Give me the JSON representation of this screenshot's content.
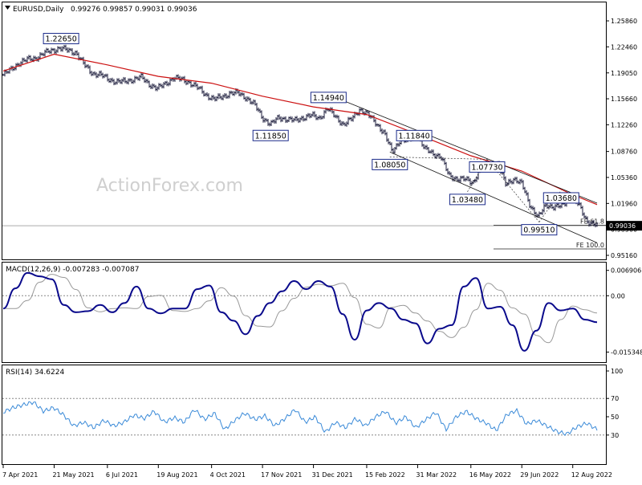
{
  "header": {
    "symbol": "EURUSD,Daily",
    "ohlc": "0.99276 0.99857 0.99031 0.99036"
  },
  "watermark": "ActionForex.com",
  "colors": {
    "price_bars": "#1a1a3a",
    "moving_average": "#cc1111",
    "macd_line": "#0a0a8c",
    "signal_line": "#999999",
    "rsi_line": "#3a8ad8",
    "channel_lines": "#111111",
    "price_marker_bg": "#000000",
    "grid_dotted": "#888888"
  },
  "chart_data": [
    {
      "panel": "price",
      "type": "ohlc",
      "title": "EURUSD,Daily",
      "ylim": [
        0.95,
        1.27
      ],
      "y_ticks": [
        "1.25860",
        "1.22460",
        "1.19050",
        "1.15660",
        "1.12260",
        "1.08760",
        "1.05360",
        "1.01960",
        "0.98560",
        "0.95160"
      ],
      "current_price": "0.99036",
      "x_ticks": [
        "7 Apr 2021",
        "21 May 2021",
        "6 Jul 2021",
        "19 Aug 2021",
        "4 Oct 2021",
        "17 Nov 2021",
        "31 Dec 2021",
        "15 Feb 2022",
        "31 Mar 2022",
        "16 May 2022",
        "29 Jun 2022",
        "12 Aug 2022"
      ],
      "close_path": [
        [
          "7 Apr 2021",
          1.188
        ],
        [
          "14 Apr 2021",
          1.195
        ],
        [
          "21 Apr 2021",
          1.204
        ],
        [
          "28 Apr 2021",
          1.208
        ],
        [
          "5 May 2021",
          1.21
        ],
        [
          "12 May 2021",
          1.216
        ],
        [
          "19 May 2021",
          1.22
        ],
        [
          "26 May 2021",
          1.223
        ],
        [
          "2 Jun 2021",
          1.22
        ],
        [
          "9 Jun 2021",
          1.217
        ],
        [
          "16 Jun 2021",
          1.201
        ],
        [
          "23 Jun 2021",
          1.19
        ],
        [
          "30 Jun 2021",
          1.188
        ],
        [
          "7 Jul 2021",
          1.182
        ],
        [
          "14 Jul 2021",
          1.179
        ],
        [
          "21 Jul 2021",
          1.179
        ],
        [
          "28 Jul 2021",
          1.182
        ],
        [
          "4 Aug 2021",
          1.185
        ],
        [
          "11 Aug 2021",
          1.176
        ],
        [
          "18 Aug 2021",
          1.17
        ],
        [
          "25 Aug 2021",
          1.176
        ],
        [
          "1 Sep 2021",
          1.184
        ],
        [
          "8 Sep 2021",
          1.182
        ],
        [
          "15 Sep 2021",
          1.178
        ],
        [
          "22 Sep 2021",
          1.171
        ],
        [
          "29 Sep 2021",
          1.162
        ],
        [
          "6 Oct 2021",
          1.156
        ],
        [
          "13 Oct 2021",
          1.159
        ],
        [
          "20 Oct 2021",
          1.164
        ],
        [
          "27 Oct 2021",
          1.164
        ],
        [
          "3 Nov 2021",
          1.158
        ],
        [
          "10 Nov 2021",
          1.149
        ],
        [
          "17 Nov 2021",
          1.132
        ],
        [
          "24 Nov 2021",
          1.123
        ],
        [
          "1 Dec 2021",
          1.132
        ],
        [
          "8 Dec 2021",
          1.13
        ],
        [
          "15 Dec 2021",
          1.128
        ],
        [
          "22 Dec 2021",
          1.132
        ],
        [
          "29 Dec 2021",
          1.135
        ],
        [
          "5 Jan 2022",
          1.131
        ],
        [
          "12 Jan 2022",
          1.144
        ],
        [
          "19 Jan 2022",
          1.133
        ],
        [
          "26 Jan 2022",
          1.123
        ],
        [
          "2 Feb 2022",
          1.13
        ],
        [
          "9 Feb 2022",
          1.143
        ],
        [
          "16 Feb 2022",
          1.136
        ],
        [
          "23 Feb 2022",
          1.125
        ],
        [
          "2 Mar 2022",
          1.112
        ],
        [
          "9 Mar 2022",
          1.087
        ],
        [
          "16 Mar 2022",
          1.103
        ],
        [
          "23 Mar 2022",
          1.101
        ],
        [
          "30 Mar 2022",
          1.112
        ],
        [
          "6 Apr 2022",
          1.091
        ],
        [
          "13 Apr 2022",
          1.085
        ],
        [
          "20 Apr 2022",
          1.081
        ],
        [
          "27 Apr 2022",
          1.056
        ],
        [
          "4 May 2022",
          1.052
        ],
        [
          "11 May 2022",
          1.051
        ],
        [
          "18 May 2022",
          1.047
        ],
        [
          "25 May 2022",
          1.068
        ],
        [
          "1 Jun 2022",
          1.072
        ],
        [
          "8 Jun 2022",
          1.071
        ],
        [
          "15 Jun 2022",
          1.045
        ],
        [
          "22 Jun 2022",
          1.052
        ],
        [
          "29 Jun 2022",
          1.045
        ],
        [
          "6 Jul 2022",
          1.018
        ],
        [
          "13 Jul 2022",
          1.001
        ],
        [
          "20 Jul 2022",
          1.018
        ],
        [
          "27 Jul 2022",
          1.015
        ],
        [
          "3 Aug 2022",
          1.016
        ],
        [
          "10 Aug 2022",
          1.029
        ],
        [
          "17 Aug 2022",
          1.018
        ],
        [
          "24 Aug 2022",
          0.997
        ],
        [
          "31 Aug 2022",
          0.992
        ],
        [
          "2 Sep 2022",
          0.9904
        ]
      ],
      "ma_path": [
        [
          "7 Apr 2021",
          1.193
        ],
        [
          "21 May 2021",
          1.215
        ],
        [
          "6 Jul 2021",
          1.201
        ],
        [
          "19 Aug 2021",
          1.186
        ],
        [
          "4 Oct 2021",
          1.177
        ],
        [
          "17 Nov 2021",
          1.16
        ],
        [
          "31 Dec 2021",
          1.146
        ],
        [
          "15 Feb 2022",
          1.136
        ],
        [
          "31 Mar 2022",
          1.11
        ],
        [
          "16 May 2022",
          1.082
        ],
        [
          "29 Jun 2022",
          1.062
        ],
        [
          "12 Aug 2022",
          1.031
        ],
        [
          "2 Sep 2022",
          1.018
        ]
      ],
      "annotations": [
        {
          "label": "1.22650",
          "date": "27 May 2021",
          "value": 1.2265
        },
        {
          "label": "1.14940",
          "date": "13 Jan 2022",
          "value": 1.1494
        },
        {
          "label": "1.11850",
          "date": "24 Nov 2021",
          "value": 1.1185
        },
        {
          "label": "1.11840",
          "date": "28 Mar 2022",
          "value": 1.1184
        },
        {
          "label": "1.08050",
          "date": "7 Mar 2022",
          "value": 1.0805
        },
        {
          "label": "1.07730",
          "date": "30 May 2022",
          "value": 1.0773
        },
        {
          "label": "1.03480",
          "date": "13 May 2022",
          "value": 1.0348
        },
        {
          "label": "1.03680",
          "date": "2 Aug 2022",
          "value": 1.0368
        },
        {
          "label": "0.99510",
          "date": "14 Jul 2022",
          "value": 0.9951
        }
      ],
      "fib_labels": [
        {
          "label": "FE 61.8",
          "value": 0.991
        },
        {
          "label": "FE 100.0",
          "value": 0.96
        }
      ],
      "channel": {
        "upper": [
          [
            "13 Jan 2022",
            1.162
          ],
          [
            "2 Sep 2022",
            1.02
          ]
        ],
        "lower": [
          [
            "7 Mar 2022",
            1.087
          ],
          [
            "2 Sep 2022",
            0.968
          ]
        ]
      }
    },
    {
      "panel": "macd",
      "type": "line",
      "title": "MACD(12,26,9) -0.007283 -0.007087",
      "ylim": [
        -0.017,
        0.0075
      ],
      "y_ticks": [
        "0.006906",
        "0.00",
        "-0.015348"
      ],
      "series": [
        {
          "name": "MACD",
          "values": [
            -0.0035,
            0.002,
            0.0062,
            0.0053,
            0.0045,
            -0.0025,
            -0.0045,
            -0.0042,
            -0.0025,
            -0.0045,
            -0.002,
            0.0025,
            -0.0035,
            -0.0048,
            -0.0035,
            -0.0035,
            0.0018,
            0.0028,
            -0.0045,
            -0.0068,
            -0.0105,
            -0.0055,
            -0.002,
            0.0012,
            0.004,
            0.0018,
            0.004,
            0.0025,
            -0.005,
            -0.012,
            -0.004,
            -0.002,
            -0.0035,
            -0.0065,
            -0.0075,
            -0.013,
            -0.009,
            -0.008,
            0.0025,
            0.0048,
            -0.0035,
            -0.003,
            -0.008,
            -0.015,
            -0.0095,
            -0.002,
            -0.004,
            -0.0035,
            -0.0065,
            -0.0072
          ]
        }
      ]
    },
    {
      "panel": "rsi",
      "type": "line",
      "title": "RSI(14) 34.6224",
      "ylim": [
        0,
        100
      ],
      "y_ticks": [
        "100",
        "70",
        "50",
        "30"
      ],
      "series": [
        {
          "name": "RSI",
          "values": [
            55,
            60,
            63,
            66,
            56,
            60,
            52,
            40,
            44,
            38,
            46,
            40,
            44,
            52,
            48,
            56,
            44,
            49,
            44,
            58,
            47,
            54,
            36,
            46,
            54,
            47,
            51,
            40,
            48,
            58,
            44,
            50,
            33,
            44,
            38,
            48,
            40,
            50,
            56,
            43,
            50,
            38,
            47,
            55,
            36,
            50,
            56,
            48,
            43,
            35,
            52,
            57,
            42,
            46,
            40,
            34,
            31,
            39,
            43,
            36
          ]
        }
      ]
    }
  ]
}
